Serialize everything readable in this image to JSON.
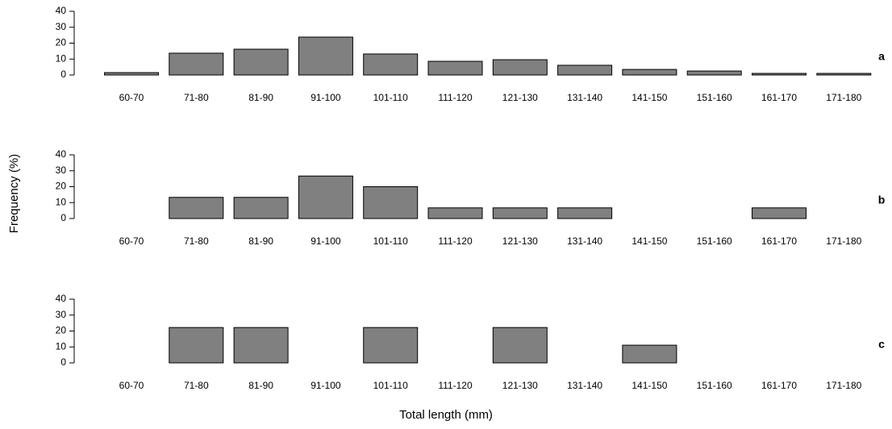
{
  "ylabel": "Frequency (%)",
  "xlabel": "Total length (mm)",
  "chart_data": [
    {
      "type": "bar",
      "label": "a",
      "color": "#808080",
      "categories": [
        "60-70",
        "71-80",
        "81-90",
        "91-100",
        "101-110",
        "111-120",
        "121-130",
        "131-140",
        "141-150",
        "151-160",
        "161-170",
        "171-180"
      ],
      "values": [
        1.5,
        13.7,
        16.2,
        23.8,
        13.2,
        8.6,
        9.6,
        6.1,
        3.5,
        2.5,
        1,
        1
      ],
      "ylim": [
        0,
        40
      ],
      "yticks": [
        0,
        10,
        20,
        30,
        40
      ]
    },
    {
      "type": "bar",
      "label": "b",
      "color": "#808080",
      "categories": [
        "60-70",
        "71-80",
        "81-90",
        "91-100",
        "101-110",
        "111-120",
        "121-130",
        "131-140",
        "141-150",
        "151-160",
        "161-170",
        "171-180"
      ],
      "values": [
        0,
        13.3,
        13.3,
        26.7,
        20,
        6.7,
        6.7,
        6.7,
        0,
        0,
        6.7,
        0
      ],
      "ylim": [
        0,
        40
      ],
      "yticks": [
        0,
        10,
        20,
        30,
        40
      ]
    },
    {
      "type": "bar",
      "label": "c",
      "color": "#808080",
      "categories": [
        "60-70",
        "71-80",
        "81-90",
        "91-100",
        "101-110",
        "111-120",
        "121-130",
        "131-140",
        "141-150",
        "151-160",
        "161-170",
        "171-180"
      ],
      "values": [
        0,
        22.2,
        22.2,
        0,
        22.2,
        0,
        22.2,
        0,
        11.1,
        0,
        0,
        0
      ],
      "ylim": [
        0,
        40
      ],
      "yticks": [
        0,
        10,
        20,
        30,
        40
      ]
    }
  ]
}
